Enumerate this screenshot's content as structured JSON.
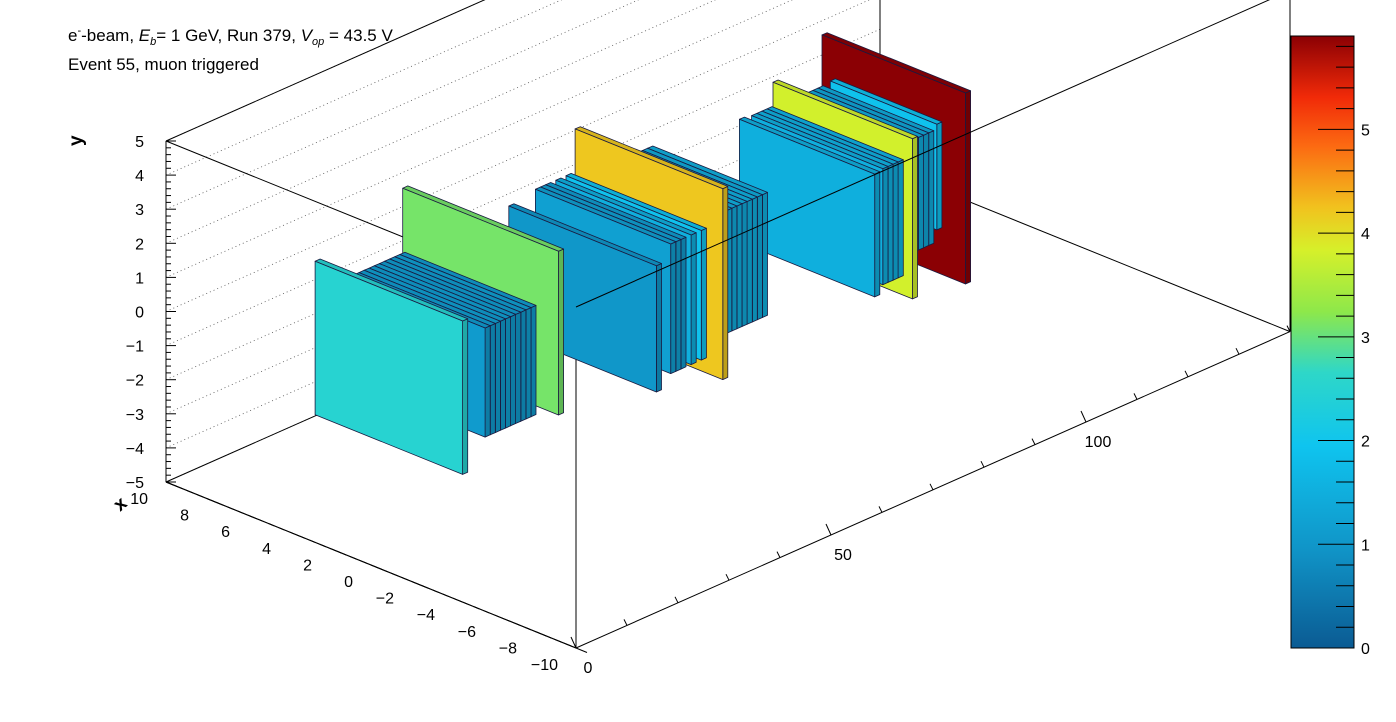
{
  "header": {
    "particle": "e",
    "particle_charge": "-",
    "beam_suffix": "-beam, ",
    "energy_symbol": "E",
    "energy_sub": "b",
    "energy_text": "= 1 GeV, Run 379, ",
    "voltage_symbol": "V",
    "voltage_sub": "op",
    "voltage_text": " = 43.5 V",
    "line2": "Event 55, muon triggered"
  },
  "chart_data": {
    "type": "lego3d",
    "xlabel": "x",
    "ylabel": "y",
    "zlabel": "",
    "xlim": [
      -10,
      10
    ],
    "ylim": [
      -5,
      5
    ],
    "zlim": [
      0,
      140
    ],
    "x_ticks": [
      "10",
      "8",
      "6",
      "4",
      "2",
      "0",
      "−2",
      "−4",
      "−6",
      "−8",
      "−10"
    ],
    "y_ticks": [
      "5",
      "4",
      "3",
      "2",
      "1",
      "0",
      "−1",
      "−2",
      "−3",
      "−4",
      "−5"
    ],
    "z_ticks": [
      "0",
      "50",
      "100"
    ],
    "colorbar": {
      "range": [
        0,
        5.9
      ],
      "ticks": [
        "0",
        "1",
        "2",
        "3",
        "4",
        "5"
      ]
    },
    "layers": [
      {
        "z": 4,
        "x0": -3.6,
        "x1": 3.6,
        "y0": -1.7,
        "y1": 2.8,
        "value": 2.5
      },
      {
        "z": 10,
        "x0": -3.2,
        "x1": 3.2,
        "y0": -1.1,
        "y1": 2.1,
        "value": 1.1
      },
      {
        "z": 11,
        "x0": -3.2,
        "x1": 3.2,
        "y0": -1.1,
        "y1": 2.1,
        "value": 1.1
      },
      {
        "z": 12,
        "x0": -3.2,
        "x1": 3.2,
        "y0": -1.1,
        "y1": 2.1,
        "value": 1.2
      },
      {
        "z": 13,
        "x0": -3.2,
        "x1": 3.2,
        "y0": -1.1,
        "y1": 2.1,
        "value": 1.1
      },
      {
        "z": 14,
        "x0": -3.2,
        "x1": 3.2,
        "y0": -1.1,
        "y1": 2.1,
        "value": 1.2
      },
      {
        "z": 15,
        "x0": -3.2,
        "x1": 3.2,
        "y0": -1.1,
        "y1": 2.1,
        "value": 1.1
      },
      {
        "z": 16,
        "x0": -3.2,
        "x1": 3.2,
        "y0": -1.1,
        "y1": 2.1,
        "value": 1.1
      },
      {
        "z": 17,
        "x0": -3.2,
        "x1": 3.2,
        "y0": -1.1,
        "y1": 2.1,
        "value": 1.1
      },
      {
        "z": 18,
        "x0": -3.2,
        "x1": 3.2,
        "y0": -1.1,
        "y1": 2.1,
        "value": 1.2
      },
      {
        "z": 19,
        "x0": -3.2,
        "x1": 3.2,
        "y0": -1.1,
        "y1": 2.1,
        "value": 1.1
      },
      {
        "z": 22,
        "x0": -3.8,
        "x1": 3.8,
        "y0": -1.1,
        "y1": 3.7,
        "value": 3.1
      },
      {
        "z": 24,
        "x0": -2.9,
        "x1": 2.9,
        "y0": -0.5,
        "y1": 2.0,
        "value": 1.1
      },
      {
        "z": 42,
        "x0": -3.6,
        "x1": 3.6,
        "y0": -1.8,
        "y1": 1.9,
        "value": 1.0
      },
      {
        "z": 46,
        "x0": -3.3,
        "x1": 3.3,
        "y0": -1.6,
        "y1": 2.2,
        "value": 1.2
      },
      {
        "z": 47,
        "x0": -3.3,
        "x1": 3.3,
        "y0": -1.6,
        "y1": 2.2,
        "value": 1.2
      },
      {
        "z": 48,
        "x0": -3.3,
        "x1": 3.3,
        "y0": -1.6,
        "y1": 2.2,
        "value": 1.1
      },
      {
        "z": 50,
        "x0": -3.3,
        "x1": 3.3,
        "y0": -1.6,
        "y1": 2.2,
        "value": 1.5
      },
      {
        "z": 52,
        "x0": -3.3,
        "x1": 3.3,
        "y0": -1.6,
        "y1": 2.2,
        "value": 1.9
      },
      {
        "z": 55,
        "x0": -3.6,
        "x1": 3.6,
        "y0": -2.3,
        "y1": 3.3,
        "value": 4.2
      },
      {
        "z": 58,
        "x0": -2.8,
        "x1": 2.8,
        "y0": -1.4,
        "y1": 2.2,
        "value": 1.5
      },
      {
        "z": 59,
        "x0": -2.8,
        "x1": 2.8,
        "y0": -1.4,
        "y1": 2.2,
        "value": 1.5
      },
      {
        "z": 60,
        "x0": -2.8,
        "x1": 2.8,
        "y0": -1.4,
        "y1": 2.2,
        "value": 1.4
      },
      {
        "z": 61,
        "x0": -2.8,
        "x1": 2.8,
        "y0": -1.4,
        "y1": 2.2,
        "value": 1.5
      },
      {
        "z": 62,
        "x0": -2.8,
        "x1": 2.8,
        "y0": -1.4,
        "y1": 2.2,
        "value": 1.4
      },
      {
        "z": 63,
        "x0": -2.8,
        "x1": 2.8,
        "y0": -1.4,
        "y1": 2.2,
        "value": 1.5
      },
      {
        "z": 64,
        "x0": -2.8,
        "x1": 2.8,
        "y0": -1.4,
        "y1": 2.2,
        "value": 1.5
      },
      {
        "z": 65,
        "x0": -2.8,
        "x1": 2.8,
        "y0": -1.4,
        "y1": 2.2,
        "value": 1.4
      },
      {
        "z": 66,
        "x0": -2.8,
        "x1": 2.8,
        "y0": -1.4,
        "y1": 2.2,
        "value": 1.5
      },
      {
        "z": 86,
        "x0": -3.3,
        "x1": 3.3,
        "y0": -2.0,
        "y1": 1.6,
        "value": 1.5
      },
      {
        "z": 88,
        "x0": -3.2,
        "x1": 3.2,
        "y0": -1.8,
        "y1": 1.6,
        "value": 1.5
      },
      {
        "z": 89,
        "x0": -3.2,
        "x1": 3.2,
        "y0": -1.8,
        "y1": 1.6,
        "value": 1.6
      },
      {
        "z": 90,
        "x0": -3.2,
        "x1": 3.2,
        "y0": -1.8,
        "y1": 1.6,
        "value": 1.5
      },
      {
        "z": 91,
        "x0": -3.2,
        "x1": 3.2,
        "y0": -1.8,
        "y1": 1.6,
        "value": 1.6
      },
      {
        "z": 93,
        "x0": -3.4,
        "x1": 3.4,
        "y0": -2.5,
        "y1": 2.2,
        "value": 3.8
      },
      {
        "z": 95,
        "x0": -2.7,
        "x1": 2.7,
        "y0": -1.5,
        "y1": 1.8,
        "value": 1.3
      },
      {
        "z": 96,
        "x0": -2.7,
        "x1": 2.7,
        "y0": -1.5,
        "y1": 1.8,
        "value": 1.3
      },
      {
        "z": 97,
        "x0": -2.7,
        "x1": 2.7,
        "y0": -1.5,
        "y1": 1.8,
        "value": 1.4
      },
      {
        "z": 98,
        "x0": -2.7,
        "x1": 2.7,
        "y0": -1.5,
        "y1": 1.8,
        "value": 1.3
      },
      {
        "z": 99,
        "x0": -2.7,
        "x1": 2.7,
        "y0": -1.5,
        "y1": 1.8,
        "value": 1.4
      },
      {
        "z": 101,
        "x0": -2.6,
        "x1": 2.6,
        "y0": -1.2,
        "y1": 1.9,
        "value": 1.9
      },
      {
        "z": 103,
        "x0": -3.5,
        "x1": 3.5,
        "y0": -2.7,
        "y1": 2.9,
        "value": 5.9
      }
    ]
  }
}
